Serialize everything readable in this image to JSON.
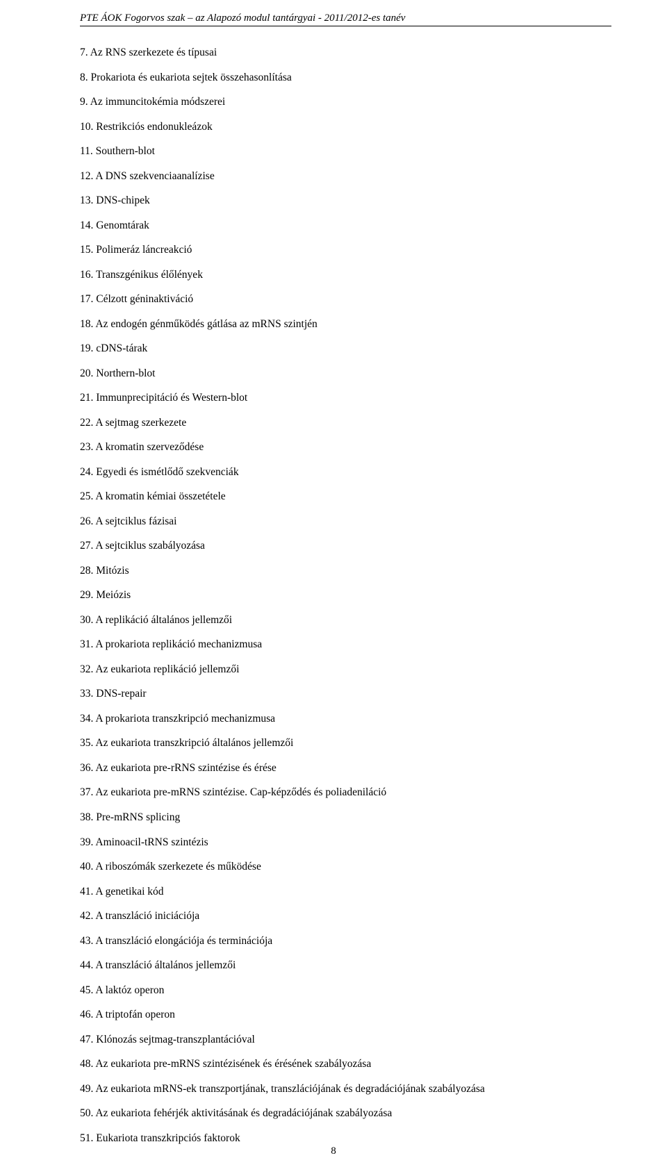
{
  "header": {
    "text": "PTE ÁOK Fogorvos szak – az Alapozó modul tantárgyai - 2011/2012-es tanév"
  },
  "list": {
    "items": [
      "7. Az RNS szerkezete és típusai",
      "8. Prokariota és eukariota sejtek összehasonlítása",
      "9. Az immuncitokémia módszerei",
      "10. Restrikciós endonukleázok",
      "11. Southern-blot",
      "12. A DNS szekvenciaanalízise",
      "13. DNS-chipek",
      "14. Genomtárak",
      "15. Polimeráz láncreakció",
      "16. Transzgénikus élőlények",
      "17. Célzott géninaktiváció",
      "18. Az endogén génműködés gátlása az mRNS szintjén",
      "19. cDNS-tárak",
      "20. Northern-blot",
      "21. Immunprecipitáció és Western-blot",
      "22. A sejtmag szerkezete",
      "23. A kromatin szerveződése",
      "24. Egyedi és ismétlődő szekvenciák",
      "25. A kromatin kémiai összetétele",
      "26. A sejtciklus fázisai",
      "27. A sejtciklus szabályozása",
      "28. Mitózis",
      "29. Meiózis",
      "30. A replikáció általános jellemzői",
      "31. A prokariota replikáció mechanizmusa",
      "32. Az eukariota replikáció jellemzői",
      "33. DNS-repair",
      "34. A prokariota transzkripció mechanizmusa",
      "35. Az eukariota transzkripció általános jellemzői",
      "36. Az eukariota pre-rRNS szintézise és érése",
      "37. Az eukariota pre-mRNS szintézise. Cap-képződés és poliadeniláció",
      "38. Pre-mRNS splicing",
      "39. Aminoacil-tRNS szintézis",
      "40. A riboszómák szerkezete és működése",
      "41. A genetikai kód",
      "42. A transzláció iniciációja",
      "43. A transzláció elongációja és terminációja",
      "44. A transzláció általános jellemzői",
      "45. A laktóz operon",
      "46. A triptofán operon",
      "47. Klónozás sejtmag-transzplantációval",
      "48. Az eukariota pre-mRNS szintézisének és érésének szabályozása",
      "49. Az eukariota mRNS-ek transzportjának, transzlációjának és degradációjának szabályozása",
      "50. Az eukariota fehérjék aktivitásának és degradációjának szabályozása",
      "51. Eukariota transzkripciós faktorok"
    ]
  },
  "pageNumber": "8"
}
